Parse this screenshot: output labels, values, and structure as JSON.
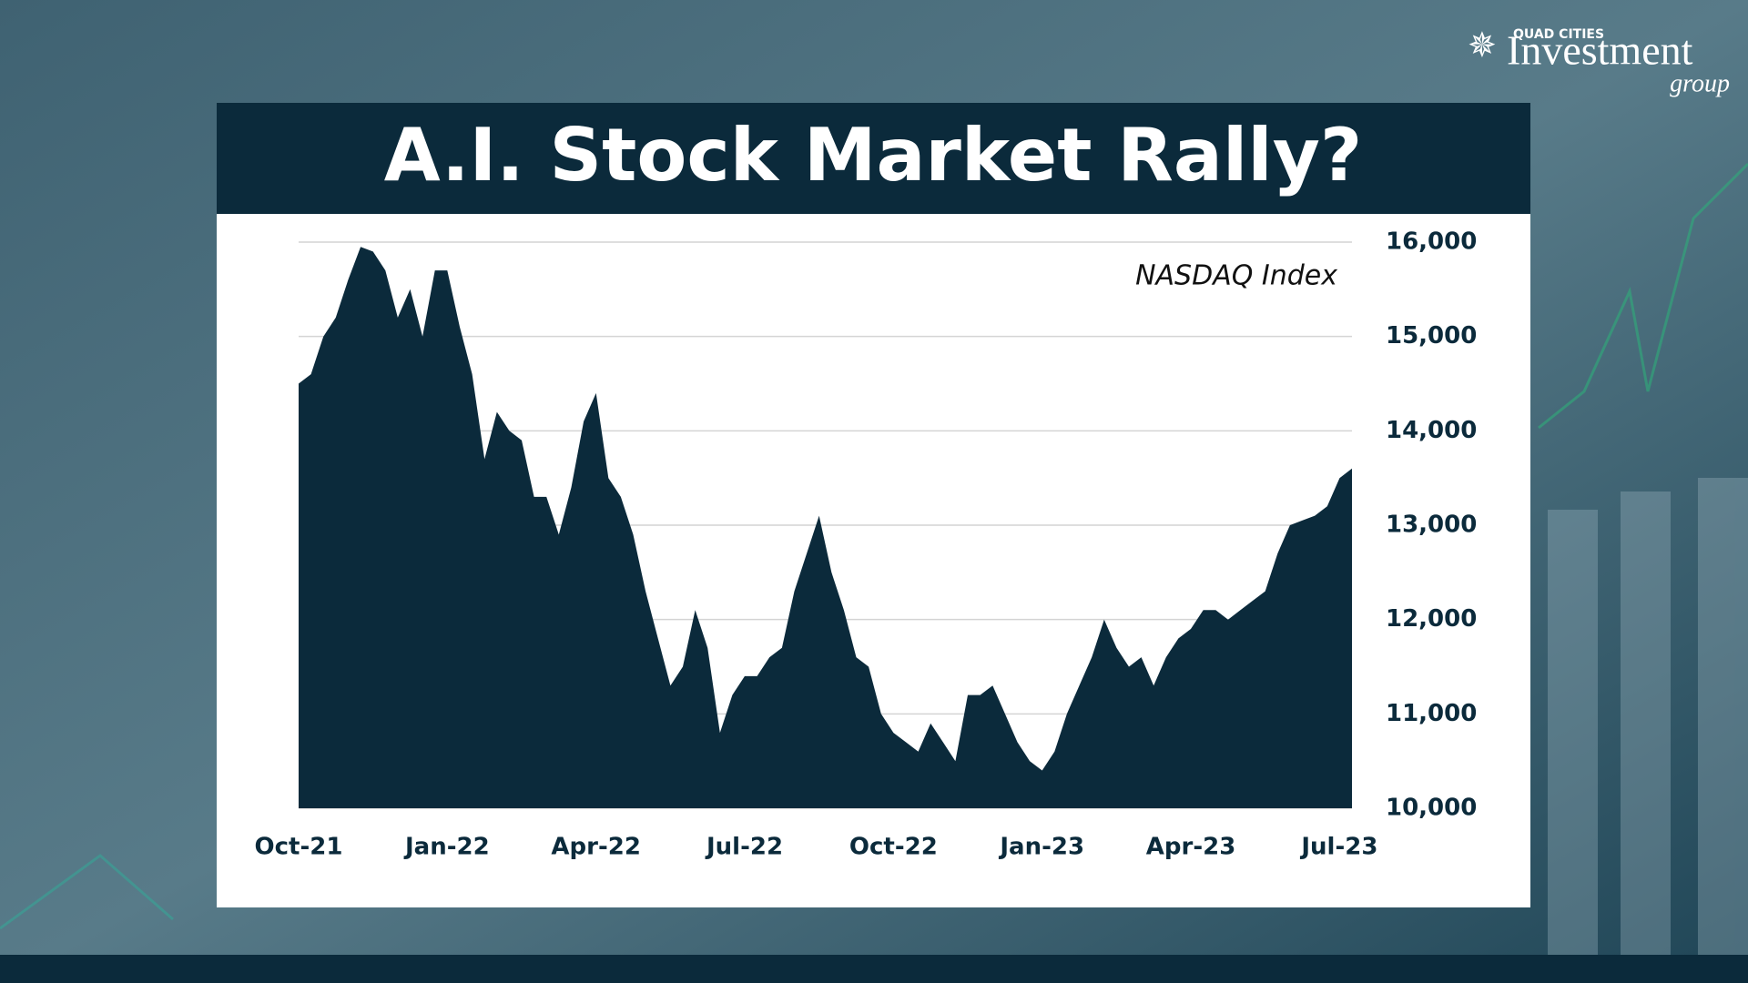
{
  "logo": {
    "top": "QUAD CITIES",
    "main": "Investment",
    "sub": "group"
  },
  "chart_data": {
    "type": "area",
    "title": "A.I. Stock Market Rally?",
    "annotation": "NASDAQ Index",
    "categories": [
      "Oct-21",
      null,
      null,
      null,
      null,
      null,
      null,
      null,
      null,
      null,
      null,
      null,
      "Jan-22",
      null,
      null,
      null,
      null,
      null,
      null,
      null,
      null,
      null,
      null,
      null,
      "Apr-22",
      null,
      null,
      null,
      null,
      null,
      null,
      null,
      null,
      null,
      null,
      null,
      "Jul-22",
      null,
      null,
      null,
      null,
      null,
      null,
      null,
      null,
      null,
      null,
      null,
      "Oct-22",
      null,
      null,
      null,
      null,
      null,
      null,
      null,
      null,
      null,
      null,
      null,
      "Jan-23",
      null,
      null,
      null,
      null,
      null,
      null,
      null,
      null,
      null,
      null,
      null,
      "Apr-23",
      null,
      null,
      null,
      null,
      null,
      null,
      null,
      null,
      null,
      null,
      null,
      "Jul-23",
      null
    ],
    "values": [
      14500,
      14600,
      15000,
      15200,
      15600,
      15950,
      15900,
      15700,
      15200,
      15500,
      15000,
      15700,
      15700,
      15100,
      14600,
      13700,
      14200,
      14000,
      13900,
      13300,
      13300,
      12900,
      13400,
      14100,
      14400,
      13500,
      13300,
      12900,
      12300,
      11800,
      11300,
      11500,
      12100,
      11700,
      10800,
      11200,
      11400,
      11400,
      11600,
      11700,
      12300,
      12700,
      13100,
      12500,
      12100,
      11600,
      11500,
      11000,
      10800,
      10700,
      10600,
      10900,
      10700,
      10500,
      11200,
      11200,
      11300,
      11000,
      10700,
      10500,
      10400,
      10600,
      11000,
      11300,
      11600,
      12000,
      11700,
      11500,
      11600,
      11300,
      11600,
      11800,
      11900,
      12100,
      12100,
      12000,
      12100,
      12200,
      12300,
      12700,
      13000,
      13050,
      13100,
      13200,
      13500,
      13600
    ],
    "color": "#0b2a3b",
    "ylim": [
      10000,
      16000
    ],
    "yticks": [
      {
        "value": 10000,
        "label": "10,000"
      },
      {
        "value": 11000,
        "label": "11,000"
      },
      {
        "value": 12000,
        "label": "12,000"
      },
      {
        "value": 13000,
        "label": "13,000"
      },
      {
        "value": 14000,
        "label": "14,000"
      },
      {
        "value": 15000,
        "label": "15,000"
      },
      {
        "value": 16000,
        "label": "16,000"
      }
    ],
    "grid": true
  }
}
